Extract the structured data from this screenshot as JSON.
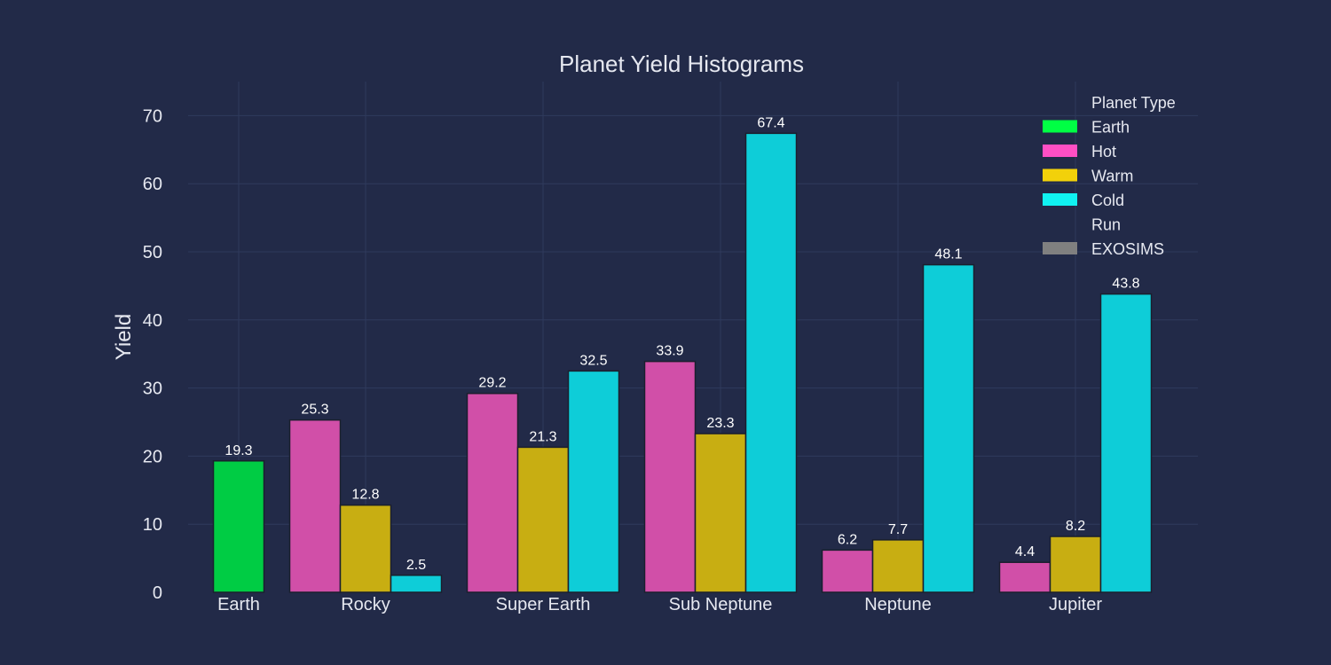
{
  "chart_data": {
    "type": "bar",
    "title": "Planet Yield Histograms",
    "xlabel": "",
    "ylabel": "Yield",
    "ylim": [
      0,
      75
    ],
    "yticks": [
      0,
      10,
      20,
      30,
      40,
      50,
      60,
      70
    ],
    "categories": [
      "Earth",
      "Rocky",
      "Super Earth",
      "Sub Neptune",
      "Neptune",
      "Jupiter"
    ],
    "series": [
      {
        "name": "Earth",
        "color": "#00cc44",
        "values": [
          19.3,
          null,
          null,
          null,
          null,
          null
        ]
      },
      {
        "name": "Hot",
        "color": "#d14fa8",
        "values": [
          null,
          25.3,
          29.2,
          33.9,
          6.2,
          4.4
        ]
      },
      {
        "name": "Warm",
        "color": "#c8ae12",
        "values": [
          null,
          12.8,
          21.3,
          23.3,
          7.7,
          8.2
        ]
      },
      {
        "name": "Cold",
        "color": "#0ecdd8",
        "values": [
          null,
          2.5,
          32.5,
          67.4,
          48.1,
          43.8
        ]
      }
    ],
    "legend": {
      "placement": "top-right",
      "groups": [
        {
          "title": "Planet Type",
          "items": [
            {
              "label": "Earth",
              "color": "#00ff44"
            },
            {
              "label": "Hot",
              "color": "#ff4fc4"
            },
            {
              "label": "Warm",
              "color": "#f2d10a"
            },
            {
              "label": "Cold",
              "color": "#10f2f2"
            }
          ]
        },
        {
          "title": "Run",
          "items": [
            {
              "label": "EXOSIMS",
              "color": "#808080"
            }
          ]
        }
      ]
    },
    "grid": true,
    "background": "#222a48"
  }
}
